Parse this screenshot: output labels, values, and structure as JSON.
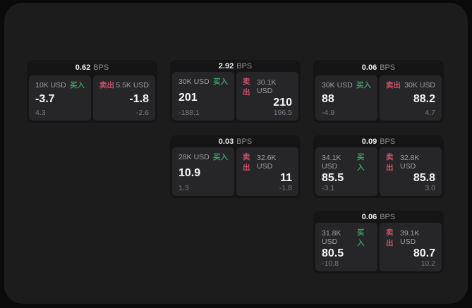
{
  "labels": {
    "buy": "买入",
    "sell": "卖出",
    "bps": "BPS"
  },
  "colors": {
    "buy": "#3d9c64",
    "sell": "#cb5069",
    "panel": "#1c1c1d",
    "card": "#151516",
    "cell": "#262628"
  },
  "cards": [
    {
      "bps": "0.62",
      "buy": {
        "amount": "10K USD",
        "value": "-3.7",
        "delta": "4.3"
      },
      "sell": {
        "amount": "5.5K USD",
        "value": "-1.8",
        "delta": "-2.6"
      }
    },
    {
      "bps": "2.92",
      "buy": {
        "amount": "30K USD",
        "value": "201",
        "delta": "-188.1"
      },
      "sell": {
        "amount": "30.1K USD",
        "value": "210",
        "delta": "196.5"
      }
    },
    {
      "bps": "0.06",
      "buy": {
        "amount": "30K USD",
        "value": "88",
        "delta": "-4.9"
      },
      "sell": {
        "amount": "30K USD",
        "value": "88.2",
        "delta": "4.7"
      }
    },
    {
      "bps": "0.03",
      "buy": {
        "amount": "28K USD",
        "value": "10.9",
        "delta": "1.3"
      },
      "sell": {
        "amount": "32.6K USD",
        "value": "11",
        "delta": "-1.8"
      }
    },
    {
      "bps": "0.09",
      "buy": {
        "amount": "34.1K USD",
        "value": "85.5",
        "delta": "-3.1"
      },
      "sell": {
        "amount": "32.8K USD",
        "value": "85.8",
        "delta": "3.0"
      }
    },
    {
      "bps": "0.06",
      "buy": {
        "amount": "31.8K USD",
        "value": "80.5",
        "delta": "-10.8"
      },
      "sell": {
        "amount": "39.1K USD",
        "value": "80.7",
        "delta": "10.2"
      }
    }
  ]
}
